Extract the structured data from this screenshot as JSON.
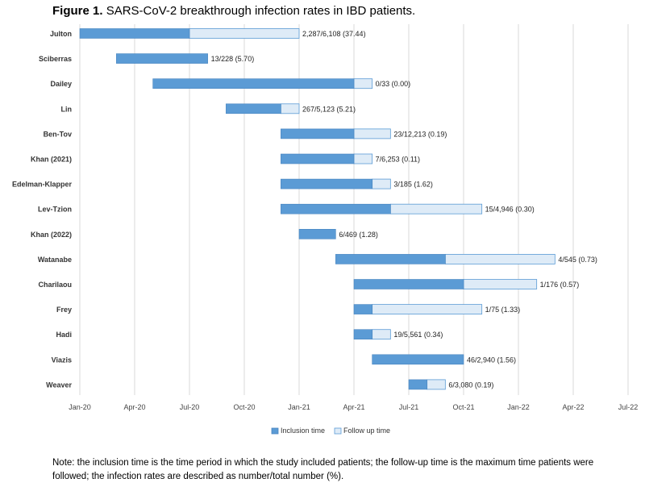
{
  "title": {
    "prefix": "Figure 1.",
    "text": "SARS-CoV-2 breakthrough infection rates in IBD patients."
  },
  "note": "Note: the inclusion time is the time period in which the study included patients; the follow-up time is the maximum time patients were followed; the infection rates are described as number/total number (%).",
  "colors": {
    "inclusion": "#5b9bd5",
    "inclusion_stroke": "#4a86c0",
    "followup": "#deebf7",
    "followup_stroke": "#5b9bd5",
    "grid": "#d9d9d9"
  },
  "chart_data": {
    "type": "bar",
    "orientation": "horizontal-gantt",
    "x_axis": {
      "ticks": [
        "Jan-20",
        "Apr-20",
        "Jul-20",
        "Oct-20",
        "Jan-21",
        "Apr-21",
        "Jul-21",
        "Oct-21",
        "Jan-22",
        "Apr-22",
        "Jul-22"
      ],
      "range": [
        "2020-01",
        "2022-07"
      ],
      "grid": true
    },
    "legend": {
      "position": "bottom",
      "items": [
        {
          "key": "inclusion",
          "label": "Inclusion time"
        },
        {
          "key": "followup",
          "label": "Follow up time"
        }
      ]
    },
    "studies": [
      {
        "name": "Julton",
        "inclusion_start": "2020-01",
        "inclusion_end": "2020-07",
        "followup_end": "2021-01",
        "label": "2,287/6,108 (37.44)"
      },
      {
        "name": "Sciberras",
        "inclusion_start": "2020-03",
        "inclusion_end": "2020-08",
        "followup_end": "2020-08",
        "label": "13/228 (5.70)"
      },
      {
        "name": "Dailey",
        "inclusion_start": "2020-05",
        "inclusion_end": "2021-04",
        "followup_end": "2021-05",
        "label": "0/33 (0.00)"
      },
      {
        "name": "Lin",
        "inclusion_start": "2020-09",
        "inclusion_end": "2020-12",
        "followup_end": "2021-01",
        "label": "267/5,123 (5.21)"
      },
      {
        "name": "Ben-Tov",
        "inclusion_start": "2020-12",
        "inclusion_end": "2021-04",
        "followup_end": "2021-06",
        "label": "23/12,213 (0.19)"
      },
      {
        "name": "Khan (2021)",
        "inclusion_start": "2020-12",
        "inclusion_end": "2021-04",
        "followup_end": "2021-05",
        "label": "7/6,253 (0.11)"
      },
      {
        "name": "Edelman-Klapper",
        "inclusion_start": "2020-12",
        "inclusion_end": "2021-05",
        "followup_end": "2021-06",
        "label": "3/185 (1.62)"
      },
      {
        "name": "Lev-Tzion",
        "inclusion_start": "2020-12",
        "inclusion_end": "2021-06",
        "followup_end": "2021-11",
        "label": "15/4,946 (0.30)"
      },
      {
        "name": "Khan (2022)",
        "inclusion_start": "2021-01",
        "inclusion_end": "2021-03",
        "followup_end": "2021-03",
        "label": "6/469 (1.28)"
      },
      {
        "name": "Watanabe",
        "inclusion_start": "2021-03",
        "inclusion_end": "2021-09",
        "followup_end": "2022-03",
        "label": "4/545 (0.73)"
      },
      {
        "name": "Charilaou",
        "inclusion_start": "2021-04",
        "inclusion_end": "2021-10",
        "followup_end": "2022-02",
        "label": "1/176 (0.57)"
      },
      {
        "name": "Frey",
        "inclusion_start": "2021-04",
        "inclusion_end": "2021-05",
        "followup_end": "2021-11",
        "label": "1/75 (1.33)"
      },
      {
        "name": "Hadi",
        "inclusion_start": "2021-04",
        "inclusion_end": "2021-05",
        "followup_end": "2021-06",
        "label": "19/5,561 (0.34)"
      },
      {
        "name": "Viazis",
        "inclusion_start": "2021-05",
        "inclusion_end": "2021-10",
        "followup_end": "2021-10",
        "label": "46/2,940 (1.56)"
      },
      {
        "name": "Weaver",
        "inclusion_start": "2021-07",
        "inclusion_end": "2021-08",
        "followup_end": "2021-09",
        "label": "6/3,080 (0.19)"
      }
    ]
  }
}
